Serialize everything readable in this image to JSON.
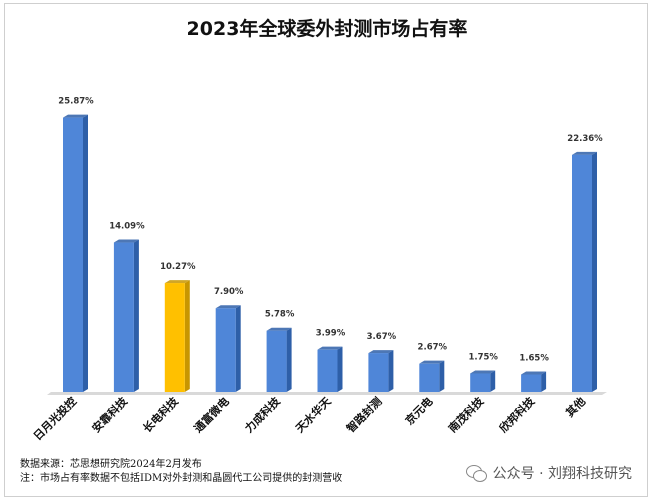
{
  "chart_data": {
    "type": "bar",
    "title": "2023年全球委外封测市场占有率",
    "categories": [
      "日月光投控",
      "安靠科技",
      "长电科技",
      "通富微电",
      "力成科技",
      "天水华天",
      "智路封测",
      "京元电",
      "南茂科技",
      "欣邦科技",
      "其他"
    ],
    "values": [
      25.87,
      14.09,
      10.27,
      7.9,
      5.78,
      3.99,
      3.67,
      2.67,
      1.75,
      1.65,
      22.36
    ],
    "value_labels": [
      "25.87%",
      "14.09%",
      "10.27%",
      "7.90%",
      "5.78%",
      "3.99%",
      "3.67%",
      "2.67%",
      "1.75%",
      "1.65%",
      "22.36%"
    ],
    "ylim": [
      0,
      28
    ],
    "grid": false,
    "legend": "none",
    "highlight_index": 2,
    "colors": {
      "bar": "#4f86d8",
      "bar_side": "#2e5fa8",
      "highlight": "#ffc000",
      "highlight_side": "#c89600"
    }
  },
  "notes": {
    "source": "数据来源：芯思想研究院2024年2月发布",
    "note": "注：市场占有率数据不包括IDM对外封测和晶圆代工公司提供的封测营收"
  },
  "watermark": {
    "text": "公众号 · 刘翔科技研究",
    "icon": "wechat-icon"
  }
}
